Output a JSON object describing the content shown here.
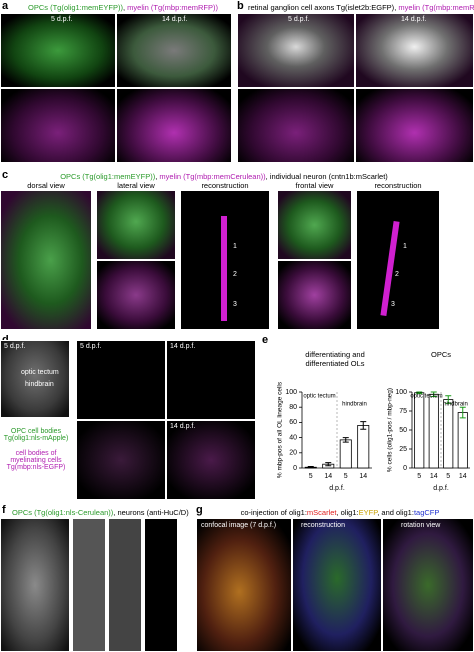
{
  "panels": {
    "a": {
      "label": "a",
      "title_parts": [
        {
          "text": "OPCs (Tg(olig1:memEYFP))",
          "color": "#2a9a2a"
        },
        {
          "text": ", ",
          "color": "#000000"
        },
        {
          "text": "myelin (Tg(mbp:memRFP))",
          "color": "#b01cb0"
        }
      ],
      "stages": [
        "5 d.p.f.",
        "14 d.p.f."
      ]
    },
    "b": {
      "label": "b",
      "title_parts": [
        {
          "text": "retinal ganglion cell axons Tg(islet2b:EGFP)",
          "color": "#000000"
        },
        {
          "text": ", ",
          "color": "#000000"
        },
        {
          "text": "myelin (Tg(mbp:memRFP))",
          "color": "#b01cb0"
        }
      ],
      "stages": [
        "5 d.p.f.",
        "14 d.p.f."
      ]
    },
    "c": {
      "label": "c",
      "title_parts": [
        {
          "text": "OPCs (Tg(olig1:memEYFP))",
          "color": "#2a9a2a"
        },
        {
          "text": ", ",
          "color": "#000000"
        },
        {
          "text": "myelin (Tg(mbp:memCerulean))",
          "color": "#b01cb0"
        },
        {
          "text": ", individual neuron (cntn1b:mScarlet)",
          "color": "#000000"
        }
      ],
      "views": [
        "dorsal view",
        "lateral view",
        "reconstruction",
        "frontal view",
        "reconstruction"
      ],
      "segments": [
        "1",
        "2",
        "3"
      ]
    },
    "d": {
      "label": "d",
      "brain_stage": "5 d.p.f.",
      "regions": [
        "optic tectum",
        "hindbrain"
      ],
      "stages": [
        "5 d.p.f.",
        "14 d.p.f.",
        "14 d.p.f."
      ],
      "legend": [
        {
          "text": "OPC cell bodies Tg(olig1:nls-mApple)",
          "color": "#2a9a2a"
        },
        {
          "text": "cell bodies of myelinating cells Tg(mbp:nls-EGFP)",
          "color": "#b01cb0"
        }
      ]
    },
    "e": {
      "label": "e"
    },
    "f": {
      "label": "f",
      "title_parts": [
        {
          "text": "OPCs (Tg(olig1:nls-Cerulean))",
          "color": "#2a9a2a"
        },
        {
          "text": ", neurons (anti-HuC/D)",
          "color": "#000000"
        }
      ]
    },
    "g": {
      "label": "g",
      "title_parts": [
        {
          "text": "co-injection of olig1:",
          "color": "#000000"
        },
        {
          "text": "mScarlet",
          "color": "#e02020"
        },
        {
          "text": ", olig1:",
          "color": "#000000"
        },
        {
          "text": "EYFP",
          "color": "#c8a000"
        },
        {
          "text": ", and olig1:",
          "color": "#000000"
        },
        {
          "text": "tagCFP",
          "color": "#2030d0"
        }
      ],
      "views": [
        "confocal image (7 d.p.f.)",
        "reconstruction",
        "rotation view"
      ]
    }
  },
  "chart_data": [
    {
      "type": "bar",
      "title": "differentiating and differentiated OLs",
      "ylabel": "% mbp-pos of all OL lineage cells",
      "xlabel": "d.p.f.",
      "categories": [
        "5",
        "14",
        "5",
        "14"
      ],
      "groups": [
        "optic tectum",
        "hindbrain"
      ],
      "values": [
        1,
        5,
        37,
        56
      ],
      "errors": [
        1,
        2,
        3,
        5
      ],
      "color": "#ffffff",
      "error_color": "#000000",
      "ylim": [
        0,
        100
      ],
      "yticks": [
        0,
        20,
        40,
        60,
        80,
        100
      ]
    },
    {
      "type": "bar",
      "title": "OPCs",
      "ylabel": "% cells (olig1-pos / mbp-neg)",
      "xlabel": "d.p.f.",
      "categories": [
        "5",
        "14",
        "5",
        "14"
      ],
      "groups": [
        "optic tectum",
        "hindbrain"
      ],
      "values": [
        99,
        97,
        90,
        73
      ],
      "errors": [
        1,
        3,
        5,
        7
      ],
      "color": "#ffffff",
      "error_color": "#1a9a1a",
      "ylim": [
        0,
        100
      ],
      "yticks": [
        0,
        25,
        50,
        75,
        100
      ]
    }
  ]
}
